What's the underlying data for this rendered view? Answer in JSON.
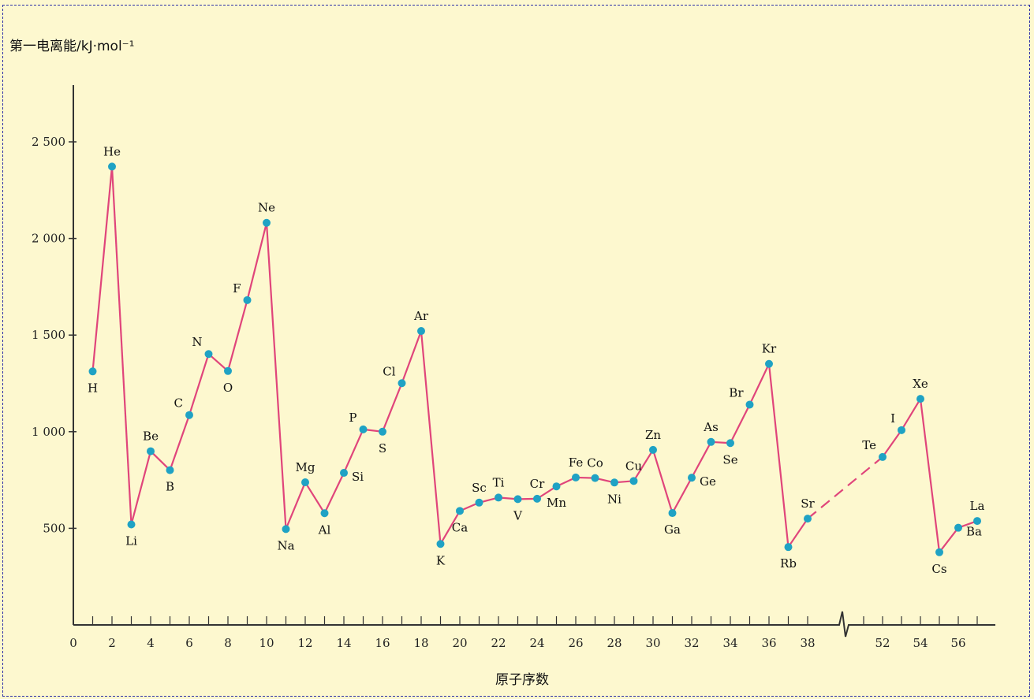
{
  "chart_data": {
    "type": "line",
    "title": "",
    "ylabel": "第一电离能/kJ·mol⁻¹",
    "xlabel": "原子序数",
    "ylim": [
      0,
      2800
    ],
    "y_ticks": [
      500,
      1000,
      1500,
      2000,
      2500
    ],
    "y_tick_labels": [
      "500",
      "1 000",
      "1 500",
      "2 000",
      "2 500"
    ],
    "x_ticks": [
      0,
      2,
      4,
      6,
      8,
      10,
      12,
      14,
      16,
      18,
      20,
      22,
      24,
      26,
      28,
      30,
      32,
      34,
      36,
      38,
      52,
      54,
      56
    ],
    "x_axis_break": [
      38,
      52
    ],
    "colors": {
      "line": "#e0457b",
      "marker": "#1fa2c4",
      "axis": "#333333"
    },
    "series": [
      {
        "points": [
          {
            "x": 1,
            "y": 1312,
            "label": "H"
          },
          {
            "x": 2,
            "y": 2372,
            "label": "He"
          },
          {
            "x": 3,
            "y": 520,
            "label": "Li"
          },
          {
            "x": 4,
            "y": 899,
            "label": "Be"
          },
          {
            "x": 5,
            "y": 801,
            "label": "B"
          },
          {
            "x": 6,
            "y": 1086,
            "label": "C"
          },
          {
            "x": 7,
            "y": 1402,
            "label": "N"
          },
          {
            "x": 8,
            "y": 1314,
            "label": "O"
          },
          {
            "x": 9,
            "y": 1681,
            "label": "F"
          },
          {
            "x": 10,
            "y": 2081,
            "label": "Ne"
          },
          {
            "x": 11,
            "y": 496,
            "label": "Na"
          },
          {
            "x": 12,
            "y": 738,
            "label": "Mg"
          },
          {
            "x": 13,
            "y": 578,
            "label": "Al"
          },
          {
            "x": 14,
            "y": 787,
            "label": "Si"
          },
          {
            "x": 15,
            "y": 1012,
            "label": "P"
          },
          {
            "x": 16,
            "y": 1000,
            "label": "S"
          },
          {
            "x": 17,
            "y": 1251,
            "label": "Cl"
          },
          {
            "x": 18,
            "y": 1521,
            "label": "Ar"
          },
          {
            "x": 19,
            "y": 419,
            "label": "K"
          },
          {
            "x": 20,
            "y": 590,
            "label": "Ca"
          },
          {
            "x": 21,
            "y": 633,
            "label": "Sc"
          },
          {
            "x": 22,
            "y": 659,
            "label": "Ti"
          },
          {
            "x": 23,
            "y": 651,
            "label": "V"
          },
          {
            "x": 24,
            "y": 653,
            "label": "Cr"
          },
          {
            "x": 25,
            "y": 717,
            "label": "Mn"
          },
          {
            "x": 26,
            "y": 763,
            "label": "Fe"
          },
          {
            "x": 27,
            "y": 760,
            "label": "Co"
          },
          {
            "x": 28,
            "y": 737,
            "label": "Ni"
          },
          {
            "x": 29,
            "y": 745,
            "label": "Cu"
          },
          {
            "x": 30,
            "y": 906,
            "label": "Zn"
          },
          {
            "x": 31,
            "y": 579,
            "label": "Ga"
          },
          {
            "x": 32,
            "y": 762,
            "label": "Ge"
          },
          {
            "x": 33,
            "y": 947,
            "label": "As"
          },
          {
            "x": 34,
            "y": 941,
            "label": "Se"
          },
          {
            "x": 35,
            "y": 1140,
            "label": "Br"
          },
          {
            "x": 36,
            "y": 1351,
            "label": "Kr"
          },
          {
            "x": 37,
            "y": 403,
            "label": "Rb"
          },
          {
            "x": 38,
            "y": 550,
            "label": "Sr"
          },
          {
            "x": 52,
            "y": 869,
            "label": "Te"
          },
          {
            "x": 53,
            "y": 1008,
            "label": "I"
          },
          {
            "x": 54,
            "y": 1170,
            "label": "Xe"
          },
          {
            "x": 55,
            "y": 376,
            "label": "Cs"
          },
          {
            "x": 56,
            "y": 503,
            "label": "Ba"
          },
          {
            "x": 57,
            "y": 538,
            "label": "La"
          }
        ]
      }
    ]
  }
}
